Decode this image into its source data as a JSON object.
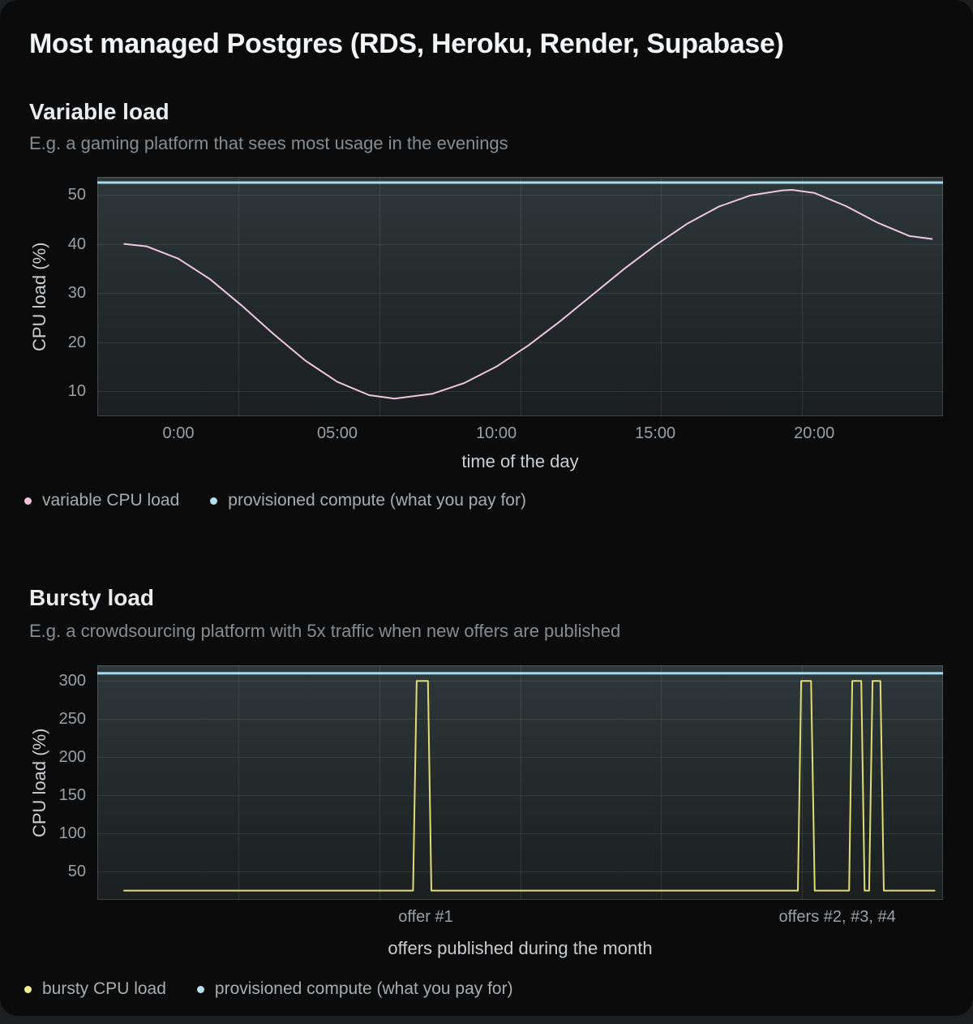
{
  "title": "Most managed Postgres (RDS, Heroku, Render, Supabase)",
  "colors": {
    "card_background": "#0b0b0c",
    "page_background": "#1d1e20",
    "variable_line": "#ecc8dc",
    "bursty_line": "#dfdd74",
    "provisioned_line": "#a9dbeb",
    "plot_gradient_top": "#2e3739",
    "plot_gradient_bottom": "#1b1f20"
  },
  "sections": [
    {
      "heading": "Variable load",
      "subtitle": "E.g. a gaming platform that sees most usage in the evenings",
      "legend": [
        {
          "label": "variable CPU load",
          "color": "#f2c3da"
        },
        {
          "label": "provisioned compute (what you pay for)",
          "color": "#b5e0ef"
        }
      ]
    },
    {
      "heading": "Bursty load",
      "subtitle": "E.g. a crowdsourcing platform with 5x traffic when new offers are published",
      "legend": [
        {
          "label": "bursty CPU load",
          "color": "#f0ee8e"
        },
        {
          "label": "provisioned compute (what you pay for)",
          "color": "#b5e0ef"
        }
      ]
    }
  ],
  "chart_data": [
    {
      "type": "line",
      "title": "Variable load",
      "xlabel": "time of the day",
      "ylabel": "CPU load (%)",
      "x_domain": [
        -2.55,
        24.05
      ],
      "y_domain": [
        4.9,
        53.65
      ],
      "grid": true,
      "legend_position": "bottom-left",
      "x_ticks": [
        {
          "value": 0,
          "label": "0:00"
        },
        {
          "value": 5,
          "label": "05:00"
        },
        {
          "value": 10,
          "label": "10:00"
        },
        {
          "value": 15,
          "label": "15:00"
        },
        {
          "value": 20,
          "label": "20:00"
        }
      ],
      "y_ticks": [
        {
          "value": 10,
          "label": "10"
        },
        {
          "value": 20,
          "label": "20"
        },
        {
          "value": 30,
          "label": "30"
        },
        {
          "value": 40,
          "label": "40"
        },
        {
          "value": 50,
          "label": "50"
        }
      ],
      "series": [
        {
          "name": "variable CPU load",
          "color": "#ecc8dc",
          "stroke_width": 2,
          "points": [
            [
              -1.7,
              40
            ],
            [
              -1,
              39.5
            ],
            [
              0,
              37
            ],
            [
              1,
              32.8
            ],
            [
              2,
              27.4
            ],
            [
              3,
              21.6
            ],
            [
              4,
              16.2
            ],
            [
              5,
              11.9
            ],
            [
              6,
              9.2
            ],
            [
              6.8,
              8.5
            ],
            [
              8,
              9.5
            ],
            [
              9,
              11.7
            ],
            [
              10,
              15
            ],
            [
              11,
              19.3
            ],
            [
              12,
              24.2
            ],
            [
              13,
              29.5
            ],
            [
              14,
              34.8
            ],
            [
              15,
              39.7
            ],
            [
              16,
              44.1
            ],
            [
              17,
              47.6
            ],
            [
              18,
              49.9
            ],
            [
              19,
              50.9
            ],
            [
              19.3,
              51
            ],
            [
              20,
              50.4
            ],
            [
              21,
              47.7
            ],
            [
              22,
              44.3
            ],
            [
              23,
              41.6
            ],
            [
              23.7,
              41
            ]
          ]
        },
        {
          "name": "provisioned compute (what you pay for)",
          "color": "#a9dbeb",
          "stroke_width": 3,
          "points": [
            [
              -2.55,
              52.5
            ],
            [
              24.05,
              52.5
            ]
          ]
        }
      ]
    },
    {
      "type": "line",
      "title": "Bursty load",
      "xlabel": "offers published during the month",
      "ylabel": "CPU load (%)",
      "x_domain": [
        0,
        30
      ],
      "y_domain": [
        12.9,
        320.4
      ],
      "grid": true,
      "legend_position": "bottom-left",
      "x_ticks": [
        {
          "value": 11.65,
          "label": "offer #1"
        },
        {
          "value": 26.25,
          "label": "offers #2, #3, #4"
        }
      ],
      "y_ticks": [
        {
          "value": 50,
          "label": "50"
        },
        {
          "value": 100,
          "label": "100"
        },
        {
          "value": 150,
          "label": "150"
        },
        {
          "value": 200,
          "label": "200"
        },
        {
          "value": 250,
          "label": "250"
        },
        {
          "value": 300,
          "label": "300"
        }
      ],
      "series": [
        {
          "name": "bursty CPU load",
          "color": "#dfdd74",
          "stroke_width": 2,
          "points": [
            [
              0.95,
              25
            ],
            [
              11.2,
              25
            ],
            [
              11.33,
              300
            ],
            [
              11.73,
              300
            ],
            [
              11.85,
              25
            ],
            [
              24.85,
              25
            ],
            [
              24.97,
              300
            ],
            [
              25.32,
              300
            ],
            [
              25.45,
              25
            ],
            [
              26.67,
              25
            ],
            [
              26.78,
              300
            ],
            [
              27.1,
              300
            ],
            [
              27.22,
              25
            ],
            [
              27.38,
              25
            ],
            [
              27.5,
              300
            ],
            [
              27.78,
              300
            ],
            [
              27.9,
              25
            ],
            [
              29.7,
              25
            ]
          ]
        },
        {
          "name": "provisioned compute (what you pay for)",
          "color": "#a9dbeb",
          "stroke_width": 3,
          "points": [
            [
              0,
              310
            ],
            [
              30,
              310
            ]
          ]
        }
      ]
    }
  ]
}
